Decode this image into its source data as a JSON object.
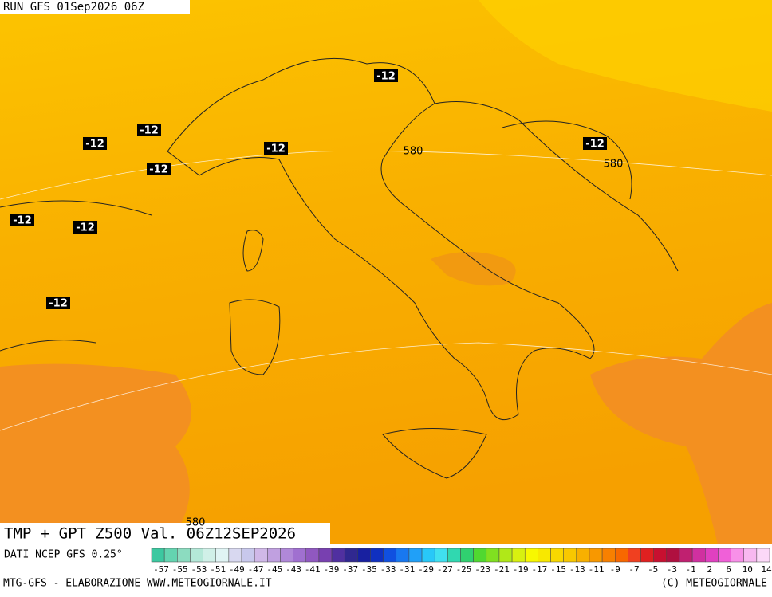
{
  "header": {
    "run": "RUN GFS 01Sep2026 06Z"
  },
  "map": {
    "temperature_labels": [
      "-12",
      "-12",
      "-12",
      "-12",
      "-12",
      "-12",
      "-12",
      "-12",
      "-12"
    ],
    "height_labels": [
      "580",
      "580",
      "580"
    ]
  },
  "caption": {
    "title": "TMP + GPT Z500 Val. 06Z12SEP2026",
    "source": "DATI NCEP GFS 0.25°"
  },
  "scale": {
    "colors": [
      "#3cc8a0",
      "#64d4b0",
      "#8cdcc0",
      "#b4e8d8",
      "#d0f0e8",
      "#e0f4f4",
      "#d8d8f0",
      "#c8c8ec",
      "#d0b8e8",
      "#c0a0e0",
      "#b088d8",
      "#a070d0",
      "#9058c0",
      "#7840b0",
      "#5030a0",
      "#302890",
      "#1820a0",
      "#1030c0",
      "#1050e0",
      "#1878f0",
      "#20a0f8",
      "#28c8f8",
      "#40e0f0",
      "#30d8b0",
      "#30d070",
      "#50d830",
      "#80e020",
      "#b0e818",
      "#d8f010",
      "#f8f800",
      "#f8e800",
      "#f8d800",
      "#f8c800",
      "#f8b000",
      "#f89800",
      "#f88000",
      "#f86800",
      "#f04020",
      "#e02020",
      "#c81030",
      "#b01040",
      "#c02070",
      "#d030a0",
      "#e040c0",
      "#f060d8",
      "#f890e8",
      "#f8b8f0",
      "#fcd8f8"
    ],
    "labels": [
      "-57",
      "-55",
      "-53",
      "-51",
      "-49",
      "-47",
      "-45",
      "-43",
      "-41",
      "-39",
      "-37",
      "-35",
      "-33",
      "-31",
      "-29",
      "-27",
      "-25",
      "-23",
      "-21",
      "-19",
      "-17",
      "-15",
      "-13",
      "-11",
      "-9",
      "-7",
      "-5",
      "-3",
      "-1",
      "2",
      "6",
      "10",
      "14"
    ]
  },
  "footer": {
    "left": "MTG-GFS - ELABORAZIONE WWW.METEOGIORNALE.IT",
    "right": "(C) METEOGIORNALE"
  }
}
